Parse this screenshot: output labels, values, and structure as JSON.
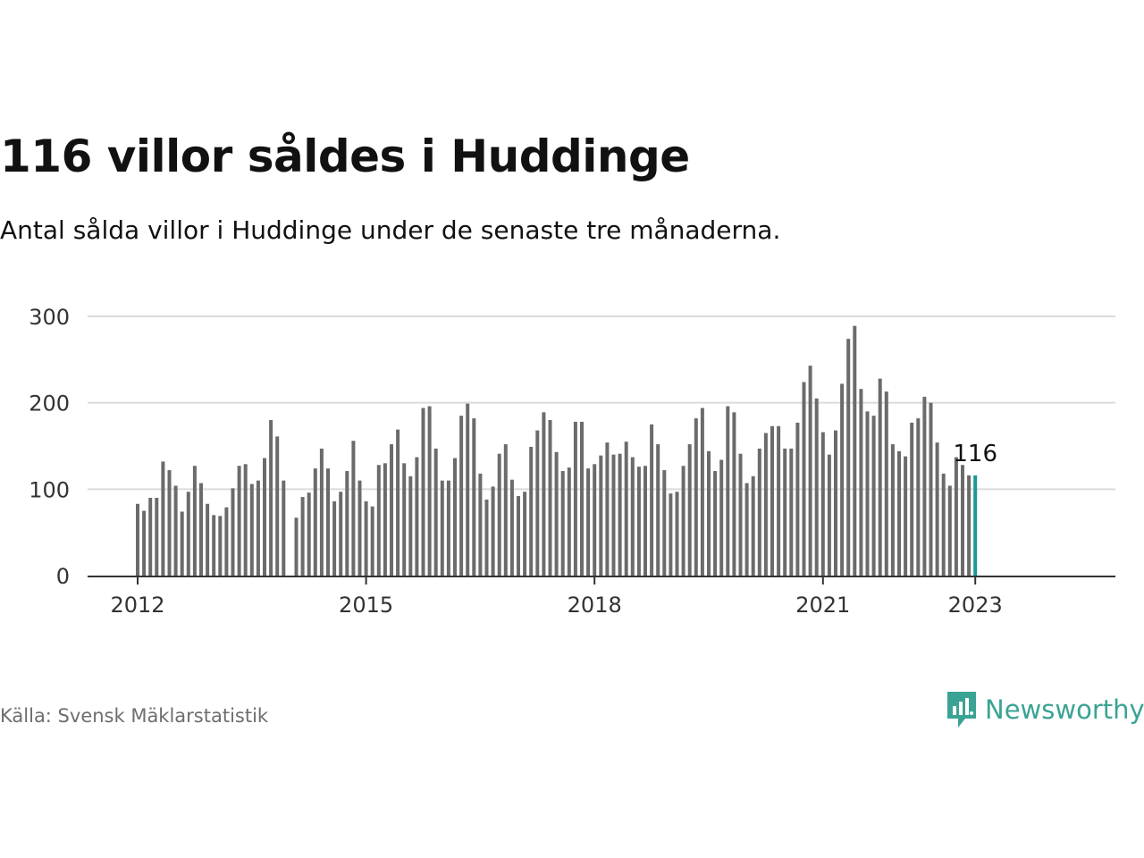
{
  "title": "116 villor såldes i Huddinge",
  "subtitle": "Antal sålda villor i Huddinge under de senaste tre månaderna.",
  "source": "Källa: Svensk Mäklarstatistik",
  "brand": {
    "name": "Newsworthy",
    "icon": "newsworthy-logo-icon",
    "color": "#3aa394"
  },
  "colors": {
    "bar": "#6b6b6b",
    "highlight": "#1a9a96",
    "grid": "#dcdcdc",
    "axis": "#333333"
  },
  "chart_data": {
    "type": "bar",
    "title": "",
    "xlabel": "",
    "ylabel": "",
    "ylim": [
      0,
      300
    ],
    "yticks": [
      0,
      100,
      200,
      300
    ],
    "xticks": [
      {
        "label": "2012",
        "month": "2012-01"
      },
      {
        "label": "2015",
        "month": "2015-01"
      },
      {
        "label": "2018",
        "month": "2018-01"
      },
      {
        "label": "2021",
        "month": "2021-01"
      },
      {
        "label": "2023",
        "month": "2023-01"
      }
    ],
    "grid": true,
    "start_month": "2012-01",
    "annotation": {
      "text": "116",
      "month": "2023-01"
    },
    "values": [
      83,
      75,
      90,
      90,
      132,
      122,
      104,
      74,
      97,
      127,
      107,
      83,
      70,
      69,
      79,
      101,
      127,
      129,
      106,
      110,
      136,
      180,
      161,
      110,
      null,
      67,
      91,
      96,
      124,
      147,
      124,
      86,
      97,
      121,
      156,
      110,
      86,
      80,
      128,
      130,
      152,
      169,
      130,
      115,
      137,
      194,
      196,
      147,
      110,
      110,
      136,
      185,
      199,
      182,
      118,
      88,
      103,
      141,
      152,
      111,
      92,
      97,
      149,
      168,
      189,
      180,
      143,
      121,
      125,
      178,
      178,
      124,
      129,
      139,
      154,
      140,
      141,
      155,
      137,
      126,
      127,
      175,
      152,
      122,
      95,
      97,
      127,
      152,
      182,
      194,
      144,
      121,
      134,
      196,
      189,
      141,
      107,
      115,
      147,
      165,
      173,
      173,
      147,
      147,
      177,
      224,
      243,
      205,
      166,
      140,
      168,
      222,
      274,
      289,
      216,
      190,
      185,
      228,
      213,
      152,
      144,
      138,
      177,
      182,
      207,
      200,
      154,
      118,
      104,
      137,
      128,
      116,
      116
    ]
  }
}
